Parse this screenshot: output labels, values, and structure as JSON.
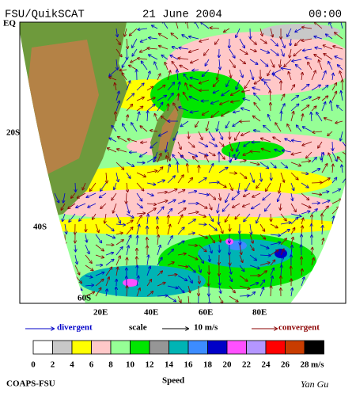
{
  "header": {
    "source": "FSU/QuikSCAT",
    "date": "21 June 2004",
    "time": "00:00"
  },
  "map": {
    "lat_labels": [
      "EQ",
      "20S",
      "40S",
      "60S"
    ],
    "lon_labels": [
      "20E",
      "40E",
      "60E",
      "80E"
    ]
  },
  "legend": {
    "divergent": "divergent",
    "scale": "scale",
    "scale_value": "10 m/s",
    "convergent": "convergent"
  },
  "colorbar": {
    "colors": [
      "#ffffff",
      "#c8c8c8",
      "#ffff00",
      "#ffc8c8",
      "#96ff96",
      "#00e600",
      "#969696",
      "#00b4b4",
      "#3c8cff",
      "#0000c8",
      "#ff50ff",
      "#b496ff",
      "#ff0000",
      "#c83c00",
      "#000000"
    ],
    "labels": [
      0,
      2,
      4,
      6,
      8,
      10,
      12,
      14,
      16,
      18,
      20,
      22,
      24,
      26,
      28
    ],
    "unit": "m/s"
  },
  "footer": {
    "left": "COAPS-FSU",
    "center": "Speed",
    "right": "Yan Gu"
  }
}
